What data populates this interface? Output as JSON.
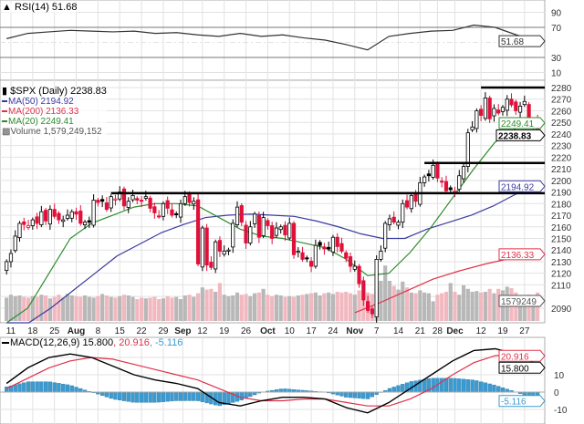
{
  "rsi_legend": {
    "label": "RSI(14)",
    "value": "51.68"
  },
  "price_legend": {
    "symbol": "$SPX (Daily)",
    "value": "2238.83",
    "ma50": "MA(50) 2194.92",
    "ma200": "MA(200) 2136.33",
    "ma20": "MA(20) 2249.41",
    "volume": "Volume 1,579,249,152"
  },
  "macd_legend": {
    "label": "MACD(12,26,9)",
    "macd": "15.800",
    "signal": ", 20.916",
    "hist": ", -5.116"
  },
  "colors": {
    "ma50": "#3a3aa0",
    "ma200": "#e0304a",
    "ma20": "#2e8b2e",
    "down": "#e0103a",
    "volume_down": "#f2b8c0",
    "volume_up": "#b8b8b8",
    "hist": "#3b9ad0"
  },
  "chart_data": [
    {
      "type": "candlestick",
      "title": "$SPX (Daily)",
      "ylim": [
        2077,
        2286
      ],
      "yticks": [
        2280,
        2270,
        2260,
        2250,
        2240,
        2230,
        2220,
        2210,
        2200,
        2190,
        2180,
        2170,
        2160,
        2150,
        2140,
        2130,
        2120,
        2110,
        2090
      ],
      "xticks": [
        {
          "i": 1,
          "label": "11"
        },
        {
          "i": 6,
          "label": "18"
        },
        {
          "i": 11,
          "label": "25"
        },
        {
          "i": 16,
          "label": "Aug",
          "bold": true
        },
        {
          "i": 21,
          "label": "8"
        },
        {
          "i": 26,
          "label": "15"
        },
        {
          "i": 31,
          "label": "22"
        },
        {
          "i": 36,
          "label": "29"
        },
        {
          "i": 40.5,
          "label": "Sep",
          "bold": true
        },
        {
          "i": 45,
          "label": "12"
        },
        {
          "i": 50,
          "label": "19"
        },
        {
          "i": 55,
          "label": "26"
        },
        {
          "i": 60,
          "label": "Oct",
          "bold": true
        },
        {
          "i": 65,
          "label": "10"
        },
        {
          "i": 70,
          "label": "17"
        },
        {
          "i": 75,
          "label": "24"
        },
        {
          "i": 80,
          "label": "Nov",
          "bold": true
        },
        {
          "i": 85,
          "label": "7"
        },
        {
          "i": 90,
          "label": "14"
        },
        {
          "i": 95,
          "label": "21"
        },
        {
          "i": 99,
          "label": "28"
        },
        {
          "i": 103,
          "label": "Dec",
          "bold": true
        },
        {
          "i": 109,
          "label": "12"
        },
        {
          "i": 114,
          "label": "19"
        },
        {
          "i": 119,
          "label": "27"
        }
      ],
      "close": [
        2130,
        2137,
        2152,
        2163,
        2162,
        2161,
        2166,
        2163,
        2173,
        2165,
        2175,
        2169,
        2166,
        2166,
        2170,
        2173,
        2171,
        2163,
        2164,
        2164,
        2183,
        2181,
        2182,
        2175,
        2186,
        2184,
        2190,
        2178,
        2182,
        2187,
        2183,
        2182,
        2186,
        2176,
        2172,
        2169,
        2180,
        2176,
        2170,
        2171,
        2180,
        2186,
        2181,
        2182,
        2128,
        2159,
        2127,
        2125,
        2147,
        2139,
        2139,
        2140,
        2163,
        2177,
        2164,
        2146,
        2160,
        2171,
        2151,
        2168,
        2161,
        2150,
        2159,
        2160,
        2153,
        2163,
        2136,
        2139,
        2132,
        2133,
        2126,
        2144,
        2144,
        2141,
        2141,
        2151,
        2143,
        2139,
        2133,
        2126,
        2126,
        2111,
        2097,
        2088,
        2085,
        2132,
        2139,
        2163,
        2167,
        2164,
        2164,
        2180,
        2177,
        2187,
        2182,
        2198,
        2203,
        2204,
        2213,
        2202,
        2199,
        2191,
        2192,
        2191,
        2204,
        2212,
        2241,
        2246,
        2260,
        2256,
        2271,
        2253,
        2262,
        2258,
        2263,
        2270,
        2265,
        2260,
        2264,
        2268,
        2249,
        2249,
        2239
      ],
      "volume_billions": [
        3.2,
        3.6,
        3.4,
        3.5,
        3.3,
        3.2,
        3.4,
        3.3,
        3.6,
        3.5,
        3.1,
        3.3,
        3.6,
        3.2,
        3.7,
        3.5,
        3.4,
        3.3,
        3.5,
        3.3,
        3.2,
        3.4,
        3.7,
        3.5,
        3.3,
        3.2,
        3.4,
        3.6,
        3.5,
        3.3,
        3.0,
        3.2,
        3.1,
        3.2,
        3.3,
        3.0,
        3.1,
        3.4,
        3.2,
        3.3,
        3.0,
        3.5,
        3.6,
        3.3,
        3.8,
        4.6,
        4.3,
        4.4,
        4.0,
        5.2,
        3.6,
        3.4,
        3.5,
        3.9,
        3.6,
        3.7,
        3.4,
        3.8,
        3.9,
        4.4,
        3.6,
        3.4,
        3.6,
        3.5,
        3.3,
        3.4,
        3.3,
        3.5,
        3.6,
        3.7,
        3.8,
        3.9,
        3.5,
        3.8,
        3.9,
        3.7,
        4.0,
        3.9,
        4.0,
        3.8,
        3.6,
        4.2,
        4.1,
        3.9,
        3.7,
        4.4,
        5.5,
        7.6,
        5.5,
        4.8,
        4.3,
        5.4,
        4.6,
        3.9,
        3.8,
        4.2,
        3.9,
        3.8,
        2.7,
        3.6,
        3.8,
        4.0,
        5.2,
        4.0,
        3.6,
        4.9,
        4.4,
        4.0,
        4.1,
        3.9,
        4.0,
        4.4,
        3.8,
        4.4,
        4.2,
        4.7,
        4.5,
        3.9,
        3.0,
        3.3,
        3.6,
        3.5,
        3.9
      ],
      "ma20": [
        2075,
        2090,
        2120,
        2150,
        2163,
        2170,
        2177,
        2180,
        2180,
        2178,
        2168,
        2158,
        2152,
        2150,
        2146,
        2142,
        2132,
        2118,
        2120,
        2138,
        2160,
        2185,
        2210,
        2233,
        2245,
        2249.41
      ],
      "ma50": [
        2060,
        2075,
        2090,
        2105,
        2120,
        2135,
        2145,
        2155,
        2162,
        2168,
        2170,
        2171,
        2170,
        2169,
        2165,
        2160,
        2154,
        2150,
        2150,
        2158,
        2164,
        2170,
        2178,
        2188,
        2194.92
      ],
      "ma200": {
        "start_index": 80,
        "values": [
          2086,
          2095,
          2105,
          2115,
          2122,
          2128,
          2133,
          2136.33
        ]
      },
      "levels": [
        {
          "price": 2189,
          "from": 24
        },
        {
          "price": 2215,
          "from": 96
        },
        {
          "price": 2280,
          "from": 109
        }
      ],
      "value_tags": [
        {
          "value": 2249.41,
          "label": "2249.41",
          "color": "#2e8b2e"
        },
        {
          "value": 2238.83,
          "label": "2238.83",
          "color": "#000000",
          "bold": true
        },
        {
          "value": 2194.92,
          "label": "2194.92",
          "color": "#3a3aa0"
        },
        {
          "value": 2136.33,
          "label": "2136.33",
          "color": "#e0304a"
        }
      ],
      "volume_tag": "1579249"
    },
    {
      "type": "line",
      "title": "RSI(14)",
      "ylim": [
        0,
        100
      ],
      "yticks": [
        90,
        70,
        30,
        10
      ],
      "values": [
        55,
        62,
        64,
        66,
        65,
        64,
        65,
        62,
        63,
        60,
        58,
        62,
        58,
        60,
        56,
        53,
        47,
        40,
        58,
        62,
        65,
        66,
        73,
        70,
        60,
        51.68
      ],
      "tag": "51.68"
    },
    {
      "type": "line",
      "title": "MACD(12,26,9)",
      "ylim": [
        -17,
        30
      ],
      "yticks": [
        10,
        0,
        -10
      ],
      "macd": [
        5,
        14,
        20,
        22,
        20,
        15,
        10,
        7,
        5,
        2,
        -6,
        -8,
        -5,
        -3,
        -3,
        -4,
        -9,
        -12,
        -6,
        2,
        10,
        18,
        24,
        25,
        22,
        15.8
      ],
      "signal": [
        2,
        8,
        14,
        18,
        20,
        19,
        16,
        13,
        10,
        7,
        2,
        -3,
        -5,
        -5,
        -4,
        -4,
        -6,
        -8,
        -8,
        -4,
        2,
        10,
        17,
        21,
        22,
        20.916
      ],
      "tags": [
        {
          "label": "20.916",
          "color": "#e0304a",
          "value": 20.916
        },
        {
          "label": "15.800",
          "color": "#000000",
          "value": 15.8
        },
        {
          "label": "-5.116",
          "color": "#3b9ad0",
          "value": -5.116
        }
      ]
    }
  ]
}
